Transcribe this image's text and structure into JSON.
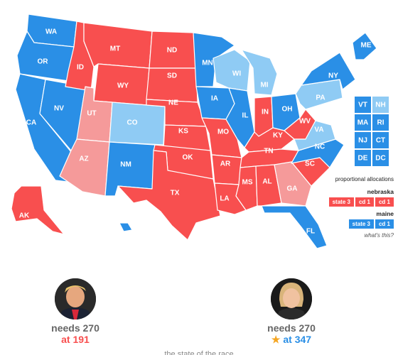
{
  "colors": {
    "rep": "#f84f4f",
    "rep_light": "#f59a9a",
    "dem": "#2a8fe6",
    "dem_light": "#8fcbf4"
  },
  "states": {
    "WA": {
      "label": "WA",
      "party": "dem"
    },
    "OR": {
      "label": "OR",
      "party": "dem"
    },
    "CA": {
      "label": "CA",
      "party": "dem"
    },
    "NV": {
      "label": "NV",
      "party": "dem"
    },
    "ID": {
      "label": "ID",
      "party": "rep"
    },
    "MT": {
      "label": "MT",
      "party": "rep"
    },
    "WY": {
      "label": "WY",
      "party": "rep"
    },
    "UT": {
      "label": "UT",
      "party": "rep_light"
    },
    "AZ": {
      "label": "AZ",
      "party": "rep_light"
    },
    "CO": {
      "label": "CO",
      "party": "dem_light"
    },
    "NM": {
      "label": "NM",
      "party": "dem"
    },
    "ND": {
      "label": "ND",
      "party": "rep"
    },
    "SD": {
      "label": "SD",
      "party": "rep"
    },
    "NE": {
      "label": "NE",
      "party": "rep"
    },
    "KS": {
      "label": "KS",
      "party": "rep"
    },
    "OK": {
      "label": "OK",
      "party": "rep"
    },
    "TX": {
      "label": "TX",
      "party": "rep"
    },
    "MN": {
      "label": "MN",
      "party": "dem"
    },
    "IA": {
      "label": "IA",
      "party": "dem"
    },
    "MO": {
      "label": "MO",
      "party": "rep"
    },
    "AR": {
      "label": "AR",
      "party": "rep"
    },
    "LA": {
      "label": "LA",
      "party": "rep"
    },
    "WI": {
      "label": "WI",
      "party": "dem_light"
    },
    "IL": {
      "label": "IL",
      "party": "dem"
    },
    "MS": {
      "label": "MS",
      "party": "rep"
    },
    "MI": {
      "label": "MI",
      "party": "dem_light"
    },
    "IN": {
      "label": "IN",
      "party": "rep"
    },
    "KY": {
      "label": "KY",
      "party": "rep"
    },
    "TN": {
      "label": "TN",
      "party": "rep"
    },
    "AL": {
      "label": "AL",
      "party": "rep"
    },
    "OH": {
      "label": "OH",
      "party": "dem"
    },
    "WV": {
      "label": "WV",
      "party": "rep"
    },
    "GA": {
      "label": "GA",
      "party": "rep_light"
    },
    "FL": {
      "label": "FL",
      "party": "dem"
    },
    "SC": {
      "label": "SC",
      "party": "rep"
    },
    "NC": {
      "label": "NC",
      "party": "dem"
    },
    "VA": {
      "label": "VA",
      "party": "dem_light"
    },
    "PA": {
      "label": "PA",
      "party": "dem_light"
    },
    "NY": {
      "label": "NY",
      "party": "dem"
    },
    "ME": {
      "label": "ME",
      "party": "dem"
    },
    "AK": {
      "label": "AK",
      "party": "rep"
    },
    "HI": {
      "label": "",
      "party": "dem"
    }
  },
  "tiles": [
    {
      "label": "VT",
      "party": "dem"
    },
    {
      "label": "NH",
      "party": "dem_light"
    },
    {
      "label": "MA",
      "party": "dem"
    },
    {
      "label": "RI",
      "party": "dem"
    },
    {
      "label": "NJ",
      "party": "dem"
    },
    {
      "label": "CT",
      "party": "dem"
    },
    {
      "label": "DE",
      "party": "dem"
    },
    {
      "label": "DC",
      "party": "dem"
    }
  ],
  "allocations": {
    "title": "proportional allocations",
    "nebraska": {
      "label": "nebraska",
      "chips": [
        {
          "text": "state 3",
          "party": "rep"
        },
        {
          "text": "cd 1",
          "party": "rep"
        },
        {
          "text": "cd 1",
          "party": "rep"
        }
      ]
    },
    "maine": {
      "label": "maine",
      "chips": [
        {
          "text": "state 3",
          "party": "dem"
        },
        {
          "text": "cd 1",
          "party": "dem"
        }
      ]
    },
    "what_link": "what's this?"
  },
  "candidates": {
    "left": {
      "needs": "needs 270",
      "at": "at 191",
      "party": "rep"
    },
    "right": {
      "needs": "needs 270",
      "at": "at 347",
      "party": "dem",
      "star": "★"
    }
  },
  "footer": {
    "text": "the state of the race"
  }
}
